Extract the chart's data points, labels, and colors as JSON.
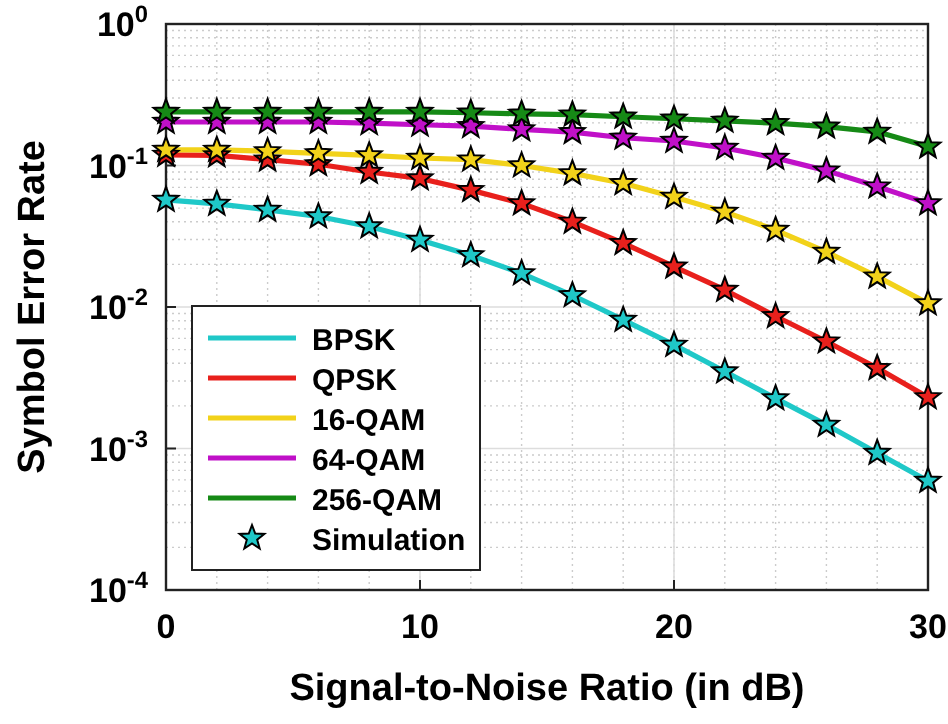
{
  "chart_data": {
    "type": "line",
    "xlabel": "Signal-to-Noise Ratio (in dB)",
    "ylabel": "Symbol Error Rate",
    "x": [
      0,
      2,
      4,
      6,
      8,
      10,
      12,
      14,
      16,
      18,
      20,
      22,
      24,
      26,
      28,
      30
    ],
    "xlim": [
      0,
      30
    ],
    "xticks": [
      0,
      10,
      20,
      30
    ],
    "log": "y",
    "ylim": [
      0.0001,
      1
    ],
    "yticks": [
      {
        "value": 0.0001,
        "label": "10$^{-4}$"
      },
      {
        "value": 0.001,
        "label": "10$^{-3}$"
      },
      {
        "value": 0.01,
        "label": "10$^{-2}$"
      },
      {
        "value": 0.1,
        "label": "10$^{-1}$"
      },
      {
        "value": 1,
        "label": "10$^{0}$"
      }
    ],
    "grid": true,
    "legend": "bottom left",
    "line_style": "solid",
    "series": [
      {
        "name": "BPSK",
        "color": "#1fc8c8",
        "values": [
          0.0571,
          0.0536,
          0.0486,
          0.0436,
          0.0371,
          0.0298,
          0.0232,
          0.0173,
          0.0121,
          0.0081,
          0.0054,
          0.0035,
          0.00226,
          0.00147,
          0.00093,
          0.00059
        ]
      },
      {
        "name": "QPSK",
        "color": "#e8201c",
        "values": [
          0.119,
          0.118,
          0.11,
          0.102,
          0.09,
          0.081,
          0.067,
          0.054,
          0.04,
          0.0283,
          0.0193,
          0.0132,
          0.0086,
          0.0057,
          0.0037,
          0.0023
        ]
      },
      {
        "name": "16-QAM",
        "color": "#f2d21a",
        "values": [
          0.129,
          0.129,
          0.126,
          0.122,
          0.118,
          0.113,
          0.11,
          0.1,
          0.088,
          0.075,
          0.06,
          0.047,
          0.035,
          0.0245,
          0.0164,
          0.0106
        ]
      },
      {
        "name": "64-QAM",
        "color": "#c010c8",
        "values": [
          0.203,
          0.203,
          0.203,
          0.203,
          0.199,
          0.194,
          0.19,
          0.18,
          0.172,
          0.157,
          0.149,
          0.133,
          0.113,
          0.092,
          0.071,
          0.054
        ]
      },
      {
        "name": "256-QAM",
        "color": "#168a16",
        "values": [
          0.239,
          0.239,
          0.239,
          0.239,
          0.239,
          0.239,
          0.236,
          0.232,
          0.229,
          0.221,
          0.214,
          0.207,
          0.199,
          0.188,
          0.173,
          0.136
        ]
      },
      {
        "name": "Simulation",
        "type": "scatter",
        "marker": "star",
        "color": "#1fc8c8",
        "values": [
          0.0571,
          0.0536,
          0.0486,
          0.0436,
          0.0371,
          0.0298,
          0.0232,
          0.0173,
          0.0121,
          0.0081,
          0.0054,
          0.0035,
          0.00226,
          0.00147,
          0.00093,
          0.00059
        ]
      },
      {
        "type": "scatter",
        "marker": "star",
        "color": "#e8201c",
        "values": [
          0.119,
          0.118,
          0.11,
          0.102,
          0.09,
          0.081,
          0.067,
          0.054,
          0.04,
          0.0283,
          0.0193,
          0.0132,
          0.0086,
          0.0057,
          0.0037,
          0.0023
        ]
      },
      {
        "type": "scatter",
        "marker": "star",
        "color": "#f2d21a",
        "values": [
          0.129,
          0.129,
          0.126,
          0.122,
          0.118,
          0.113,
          0.11,
          0.1,
          0.088,
          0.075,
          0.06,
          0.047,
          0.035,
          0.0245,
          0.0164,
          0.0106
        ]
      },
      {
        "type": "scatter",
        "marker": "star",
        "color": "#c010c8",
        "values": [
          0.203,
          0.203,
          0.203,
          0.203,
          0.199,
          0.194,
          0.19,
          0.18,
          0.172,
          0.157,
          0.149,
          0.133,
          0.113,
          0.092,
          0.071,
          0.054
        ]
      },
      {
        "type": "scatter",
        "marker": "star",
        "color": "#168a16",
        "values": [
          0.239,
          0.239,
          0.239,
          0.239,
          0.239,
          0.239,
          0.236,
          0.232,
          0.229,
          0.221,
          0.214,
          0.207,
          0.199,
          0.188,
          0.173,
          0.136
        ]
      }
    ]
  }
}
